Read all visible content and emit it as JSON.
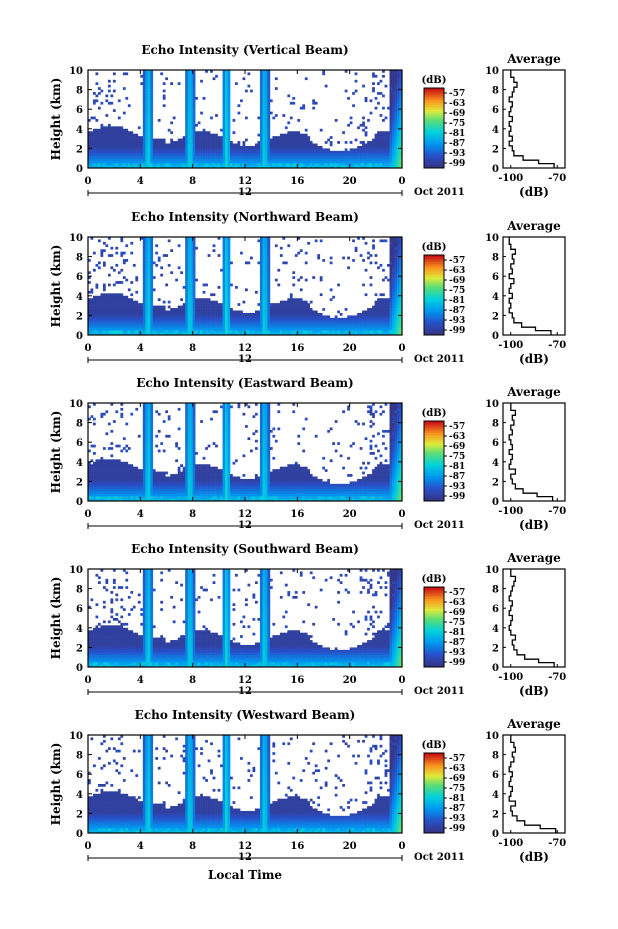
{
  "figure": {
    "xlabel": "Local Time",
    "date_label": "Oct 2011"
  },
  "chart_data": [
    {
      "type": "heatmap",
      "title": "Echo Intensity (Vertical Beam)",
      "ylabel": "Height (km)",
      "x_ticks": [
        "0",
        "4",
        "8",
        "12",
        "16",
        "20",
        "0"
      ],
      "x_range_hours": [
        0,
        24
      ],
      "y_ticks": [
        "0",
        "2",
        "4",
        "6",
        "8",
        "10"
      ],
      "ylim": [
        0,
        10
      ],
      "secondary_axis_label": "12",
      "colorbar": {
        "unit": "(dB)",
        "ticks": [
          "-57",
          "-63",
          "-69",
          "-75",
          "-81",
          "-87",
          "-93",
          "-99"
        ],
        "range": [
          -102,
          -54
        ]
      },
      "average_profile": {
        "title": "Average",
        "xlabel": "(dB)",
        "x_ticks": [
          "-100",
          "-70"
        ],
        "xlim": [
          -105,
          -65
        ],
        "y_ticks": [
          "0",
          "2",
          "4",
          "6",
          "8",
          "10"
        ],
        "ylim": [
          0,
          10
        ],
        "heights": [
          0.3,
          0.6,
          1.0,
          1.5,
          2.0,
          2.5,
          3.0,
          3.5,
          4.0,
          4.5,
          5.0,
          5.5,
          6.0,
          6.5,
          7.0,
          7.5,
          8.0,
          8.5,
          9.0,
          9.5
        ],
        "values": [
          -72,
          -82,
          -92,
          -98,
          -99,
          -101,
          -99,
          -101,
          -100,
          -101,
          -99,
          -101,
          -100,
          -99,
          -101,
          -99,
          -98,
          -96,
          -98,
          -100
        ]
      }
    },
    {
      "type": "heatmap",
      "title": "Echo Intensity (Northward Beam)",
      "ylabel": "Height (km)",
      "x_ticks": [
        "0",
        "4",
        "8",
        "12",
        "16",
        "20",
        "0"
      ],
      "x_range_hours": [
        0,
        24
      ],
      "y_ticks": [
        "0",
        "2",
        "4",
        "6",
        "8",
        "10"
      ],
      "ylim": [
        0,
        10
      ],
      "secondary_axis_label": "12",
      "colorbar": {
        "unit": "(dB)",
        "ticks": [
          "-57",
          "-63",
          "-69",
          "-75",
          "-81",
          "-87",
          "-93",
          "-99"
        ],
        "range": [
          -102,
          -54
        ]
      },
      "average_profile": {
        "title": "Average",
        "xlabel": "(dB)",
        "x_ticks": [
          "-100",
          "-70"
        ],
        "xlim": [
          -105,
          -65
        ],
        "y_ticks": [
          "0",
          "2",
          "4",
          "6",
          "8",
          "10"
        ],
        "ylim": [
          0,
          10
        ],
        "heights": [
          0.3,
          0.6,
          1.0,
          1.5,
          2.0,
          2.5,
          3.0,
          3.5,
          4.0,
          4.5,
          5.0,
          5.5,
          6.0,
          6.5,
          7.0,
          7.5,
          8.0,
          8.5,
          9.0,
          9.5
        ],
        "values": [
          -74,
          -84,
          -93,
          -98,
          -99,
          -101,
          -100,
          -101,
          -99,
          -101,
          -100,
          -98,
          -101,
          -99,
          -100,
          -98,
          -99,
          -97,
          -100,
          -101
        ]
      }
    },
    {
      "type": "heatmap",
      "title": "Echo Intensity (Eastward Beam)",
      "ylabel": "Height (km)",
      "x_ticks": [
        "0",
        "4",
        "8",
        "12",
        "16",
        "20",
        "0"
      ],
      "x_range_hours": [
        0,
        24
      ],
      "y_ticks": [
        "0",
        "2",
        "4",
        "6",
        "8",
        "10"
      ],
      "ylim": [
        0,
        10
      ],
      "secondary_axis_label": "12",
      "colorbar": {
        "unit": "(dB)",
        "ticks": [
          "-57",
          "-63",
          "-69",
          "-75",
          "-81",
          "-87",
          "-93",
          "-99"
        ],
        "range": [
          -102,
          -54
        ]
      },
      "average_profile": {
        "title": "Average",
        "xlabel": "(dB)",
        "x_ticks": [
          "-100",
          "-70"
        ],
        "xlim": [
          -105,
          -65
        ],
        "y_ticks": [
          "0",
          "2",
          "4",
          "6",
          "8",
          "10"
        ],
        "ylim": [
          0,
          10
        ],
        "heights": [
          0.3,
          0.6,
          1.0,
          1.5,
          2.0,
          2.5,
          3.0,
          3.5,
          4.0,
          4.5,
          5.0,
          5.5,
          6.0,
          6.5,
          7.0,
          7.5,
          8.0,
          8.5,
          9.0,
          9.5
        ],
        "values": [
          -73,
          -83,
          -92,
          -97,
          -99,
          -100,
          -97,
          -101,
          -100,
          -99,
          -101,
          -99,
          -100,
          -101,
          -99,
          -100,
          -98,
          -99,
          -97,
          -100
        ]
      }
    },
    {
      "type": "heatmap",
      "title": "Echo Intensity (Southward Beam)",
      "ylabel": "Height (km)",
      "x_ticks": [
        "0",
        "4",
        "8",
        "12",
        "16",
        "20",
        "0"
      ],
      "x_range_hours": [
        0,
        24
      ],
      "y_ticks": [
        "0",
        "2",
        "4",
        "6",
        "8",
        "10"
      ],
      "ylim": [
        0,
        10
      ],
      "secondary_axis_label": "12",
      "colorbar": {
        "unit": "(dB)",
        "ticks": [
          "-57",
          "-63",
          "-69",
          "-75",
          "-81",
          "-87",
          "-93",
          "-99"
        ],
        "range": [
          -102,
          -54
        ]
      },
      "average_profile": {
        "title": "Average",
        "xlabel": "(dB)",
        "x_ticks": [
          "-100",
          "-70"
        ],
        "xlim": [
          -105,
          -65
        ],
        "y_ticks": [
          "0",
          "2",
          "4",
          "6",
          "8",
          "10"
        ],
        "ylim": [
          0,
          10
        ],
        "heights": [
          0.3,
          0.6,
          1.0,
          1.5,
          2.0,
          2.5,
          3.0,
          3.5,
          4.0,
          4.5,
          5.0,
          5.5,
          6.0,
          6.5,
          7.0,
          7.5,
          8.0,
          8.5,
          9.0,
          9.5
        ],
        "values": [
          -72,
          -82,
          -91,
          -96,
          -98,
          -99,
          -97,
          -100,
          -101,
          -100,
          -99,
          -101,
          -100,
          -99,
          -101,
          -100,
          -99,
          -98,
          -97,
          -100
        ]
      }
    },
    {
      "type": "heatmap",
      "title": "Echo Intensity (Westward Beam)",
      "ylabel": "Height (km)",
      "x_ticks": [
        "0",
        "4",
        "8",
        "12",
        "16",
        "20",
        "0"
      ],
      "x_range_hours": [
        0,
        24
      ],
      "y_ticks": [
        "0",
        "2",
        "4",
        "6",
        "8",
        "10"
      ],
      "ylim": [
        0,
        10
      ],
      "secondary_axis_label": "12",
      "colorbar": {
        "unit": "(dB)",
        "ticks": [
          "-57",
          "-63",
          "-69",
          "-75",
          "-81",
          "-87",
          "-93",
          "-99"
        ],
        "range": [
          -102,
          -54
        ]
      },
      "average_profile": {
        "title": "Average",
        "xlabel": "(dB)",
        "x_ticks": [
          "-100",
          "-70"
        ],
        "xlim": [
          -105,
          -65
        ],
        "y_ticks": [
          "0",
          "2",
          "4",
          "6",
          "8",
          "10"
        ],
        "ylim": [
          0,
          10
        ],
        "heights": [
          0.3,
          0.6,
          1.0,
          1.5,
          2.0,
          2.5,
          3.0,
          3.5,
          4.0,
          4.5,
          5.0,
          5.5,
          6.0,
          6.5,
          7.0,
          7.5,
          8.0,
          8.5,
          9.0,
          9.5
        ],
        "values": [
          -71,
          -81,
          -91,
          -96,
          -99,
          -100,
          -97,
          -101,
          -100,
          -99,
          -101,
          -100,
          -99,
          -101,
          -100,
          -98,
          -99,
          -97,
          -98,
          -100
        ]
      }
    }
  ]
}
